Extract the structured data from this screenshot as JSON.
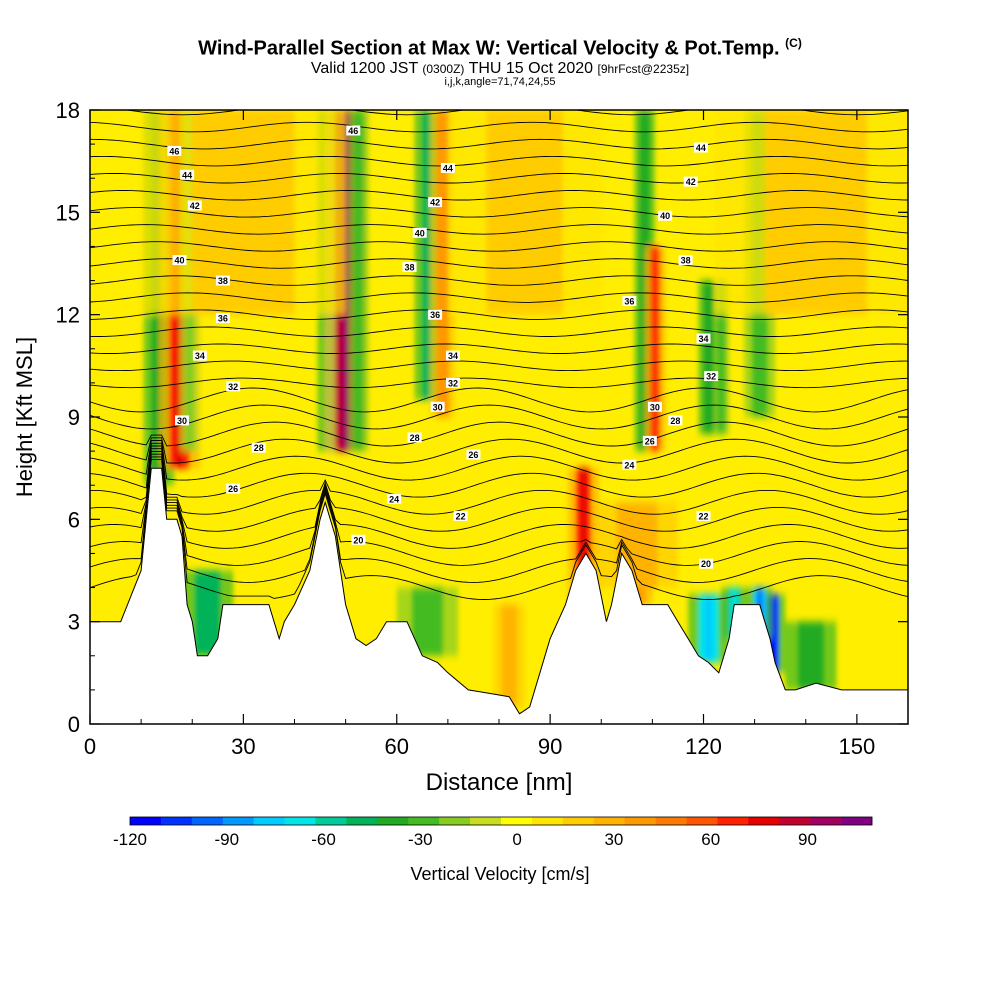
{
  "chart_data": {
    "type": "heatmap",
    "title": "Wind-Parallel Section at Max W: Vertical Velocity & Pot.Temp.",
    "title_mark": "(C)",
    "subtitle": {
      "valid": "Valid 1200 JST",
      "utc": "(0300Z)",
      "date": "THU 15 Oct 2020",
      "fcst": "[9hrFcst@2235z]"
    },
    "subtitle2": "i,j,k,angle=71,74,24,55",
    "xlabel": "Distance [nm]",
    "ylabel": "Height [Kft MSL]",
    "xlim": [
      0,
      160
    ],
    "ylim": [
      0,
      18
    ],
    "xticks": [
      "0",
      "30",
      "60",
      "90",
      "120",
      "150"
    ],
    "yticks": [
      "0",
      "3",
      "6",
      "9",
      "12",
      "15",
      "18"
    ],
    "colorbar": {
      "label": "Vertical Velocity [cm/s]",
      "min": -120,
      "max": 110,
      "ticks": [
        "-120",
        "-90",
        "-60",
        "-30",
        "0",
        "30",
        "60",
        "90"
      ],
      "colors": [
        "#0000ff",
        "#0033ff",
        "#0066ff",
        "#0099ff",
        "#00ccff",
        "#00e6e6",
        "#00cc99",
        "#00b359",
        "#22aa22",
        "#44bb22",
        "#88cc22",
        "#c8dd22",
        "#ffff00",
        "#ffe600",
        "#ffcc00",
        "#ffb300",
        "#ff9900",
        "#ff7a00",
        "#ff5500",
        "#ff2200",
        "#e60000",
        "#c00030",
        "#a00060",
        "#800080"
      ]
    },
    "terrain_height_kft": [
      [
        0,
        3.0
      ],
      [
        1,
        3.0
      ],
      [
        6,
        3.0
      ],
      [
        10,
        4.5
      ],
      [
        12,
        7.5
      ],
      [
        14,
        7.5
      ],
      [
        15,
        6.0
      ],
      [
        17,
        6.0
      ],
      [
        18,
        5.5
      ],
      [
        19,
        3.5
      ],
      [
        20,
        3.0
      ],
      [
        21,
        2.0
      ],
      [
        23,
        2.0
      ],
      [
        25,
        2.5
      ],
      [
        26,
        3.5
      ],
      [
        30,
        3.5
      ],
      [
        34,
        3.5
      ],
      [
        35,
        3.5
      ],
      [
        37,
        2.5
      ],
      [
        38,
        3.0
      ],
      [
        40,
        3.5
      ],
      [
        43,
        4.5
      ],
      [
        45,
        6.0
      ],
      [
        46,
        6.5
      ],
      [
        48,
        5.5
      ],
      [
        50,
        3.5
      ],
      [
        52,
        2.5
      ],
      [
        54,
        2.3
      ],
      [
        56,
        2.5
      ],
      [
        58,
        3.0
      ],
      [
        62,
        3.0
      ],
      [
        65,
        2.0
      ],
      [
        68,
        1.8
      ],
      [
        70,
        1.5
      ],
      [
        74,
        1.0
      ],
      [
        78,
        0.9
      ],
      [
        82,
        0.8
      ],
      [
        84,
        0.3
      ],
      [
        86,
        0.5
      ],
      [
        88,
        1.5
      ],
      [
        90,
        2.5
      ],
      [
        93,
        3.5
      ],
      [
        95,
        4.5
      ],
      [
        97,
        5.0
      ],
      [
        99,
        4.5
      ],
      [
        101,
        3.0
      ],
      [
        102,
        3.5
      ],
      [
        104,
        5.0
      ],
      [
        106,
        4.5
      ],
      [
        108,
        3.5
      ],
      [
        110,
        3.5
      ],
      [
        113,
        3.5
      ],
      [
        115,
        3.0
      ],
      [
        117,
        2.5
      ],
      [
        119,
        2.0
      ],
      [
        121,
        1.8
      ],
      [
        123,
        1.5
      ],
      [
        125,
        2.5
      ],
      [
        126,
        3.5
      ],
      [
        128,
        3.5
      ],
      [
        131,
        3.5
      ],
      [
        132,
        3.0
      ],
      [
        133,
        2.5
      ],
      [
        134,
        1.8
      ],
      [
        136,
        1.0
      ],
      [
        138,
        1.0
      ],
      [
        142,
        1.2
      ],
      [
        147,
        1.0
      ],
      [
        152,
        1.0
      ],
      [
        156,
        1.0
      ],
      [
        160,
        1.0
      ]
    ],
    "vertical_velocity_features": [
      {
        "x": 13.5,
        "width": 3,
        "bottom": 7,
        "top": 18,
        "w": -35
      },
      {
        "x": 17.5,
        "width": 4,
        "bottom": 7.5,
        "top": 18,
        "w": 70
      },
      {
        "x": 19.5,
        "width": 2,
        "bottom": 8,
        "top": 18,
        "w": -20
      },
      {
        "x": 47.5,
        "width": 3,
        "bottom": 8,
        "top": 18,
        "w": -65
      },
      {
        "x": 50,
        "width": 4,
        "bottom": 8,
        "top": 18,
        "w": 85
      },
      {
        "x": 52.5,
        "width": 2,
        "bottom": 8,
        "top": 18,
        "w": -25
      },
      {
        "x": 66.5,
        "width": 3,
        "bottom": 9.5,
        "top": 18,
        "w": -45
      },
      {
        "x": 69,
        "width": 2.5,
        "bottom": 9,
        "top": 18,
        "w": 35
      },
      {
        "x": 96.5,
        "width": 3,
        "bottom": 3,
        "top": 7.5,
        "w": 65
      },
      {
        "x": 107,
        "width": 3,
        "bottom": 3.5,
        "top": 6.5,
        "w": 40
      },
      {
        "x": 108.5,
        "width": 2,
        "bottom": 8,
        "top": 18,
        "w": -40
      },
      {
        "x": 110.5,
        "width": 2,
        "bottom": 8,
        "top": 14,
        "w": 60
      },
      {
        "x": 121,
        "width": 2,
        "bottom": 8.5,
        "top": 13,
        "w": -35
      },
      {
        "x": 123.5,
        "width": 1.5,
        "bottom": 8.5,
        "top": 13,
        "w": -30
      },
      {
        "x": 131,
        "width": 3,
        "bottom": 9,
        "top": 18,
        "w": -25
      },
      {
        "x": 23,
        "width": 5,
        "bottom": 2,
        "top": 4.5,
        "w": -45
      },
      {
        "x": 66,
        "width": 6,
        "bottom": 2,
        "top": 4,
        "w": -25
      },
      {
        "x": 82,
        "width": 3,
        "bottom": 0.5,
        "top": 3.5,
        "w": 30
      },
      {
        "x": 121,
        "width": 4,
        "bottom": 1.8,
        "top": 3.8,
        "w": -70
      },
      {
        "x": 126,
        "width": 2.5,
        "bottom": 2.5,
        "top": 4,
        "w": -55
      },
      {
        "x": 133.5,
        "width": 2.5,
        "bottom": 1.5,
        "top": 3.8,
        "w": -110
      },
      {
        "x": 131,
        "width": 2.5,
        "bottom": 2.5,
        "top": 4,
        "w": -80
      },
      {
        "x": 141,
        "width": 5,
        "bottom": 1.0,
        "top": 3,
        "w": -40
      },
      {
        "x": 30,
        "width": 20,
        "bottom": 12,
        "top": 18,
        "w": 18
      },
      {
        "x": 85,
        "width": 15,
        "bottom": 12,
        "top": 18,
        "w": 20
      },
      {
        "x": 142,
        "width": 20,
        "bottom": 12,
        "top": 18,
        "w": 15
      },
      {
        "x": 107,
        "width": 8,
        "bottom": 4,
        "top": 6.5,
        "w": 25
      }
    ],
    "theta_contour_labels": [
      {
        "text": "46",
        "x": 16.5,
        "y": 16.8
      },
      {
        "text": "44",
        "x": 19,
        "y": 16.1
      },
      {
        "text": "42",
        "x": 20.5,
        "y": 15.2
      },
      {
        "text": "40",
        "x": 17.5,
        "y": 13.6
      },
      {
        "text": "38",
        "x": 26,
        "y": 13.0
      },
      {
        "text": "36",
        "x": 26,
        "y": 11.9
      },
      {
        "text": "34",
        "x": 21.5,
        "y": 10.8
      },
      {
        "text": "32",
        "x": 28,
        "y": 9.9
      },
      {
        "text": "30",
        "x": 18,
        "y": 8.9
      },
      {
        "text": "28",
        "x": 33,
        "y": 8.1
      },
      {
        "text": "26",
        "x": 28,
        "y": 6.9
      },
      {
        "text": "46",
        "x": 51.5,
        "y": 17.4
      },
      {
        "text": "44",
        "x": 70,
        "y": 16.3
      },
      {
        "text": "42",
        "x": 67.5,
        "y": 15.3
      },
      {
        "text": "40",
        "x": 64.5,
        "y": 14.4
      },
      {
        "text": "38",
        "x": 62.5,
        "y": 13.4
      },
      {
        "text": "36",
        "x": 67.5,
        "y": 12.0
      },
      {
        "text": "34",
        "x": 71,
        "y": 10.8
      },
      {
        "text": "32",
        "x": 71,
        "y": 10.0
      },
      {
        "text": "30",
        "x": 68,
        "y": 9.3
      },
      {
        "text": "28",
        "x": 63.5,
        "y": 8.4
      },
      {
        "text": "26",
        "x": 75,
        "y": 7.9
      },
      {
        "text": "24",
        "x": 59.5,
        "y": 6.6
      },
      {
        "text": "22",
        "x": 72.5,
        "y": 6.1
      },
      {
        "text": "20",
        "x": 52.5,
        "y": 5.4
      },
      {
        "text": "44",
        "x": 119.5,
        "y": 16.9
      },
      {
        "text": "42",
        "x": 117.5,
        "y": 15.9
      },
      {
        "text": "40",
        "x": 112.5,
        "y": 14.9
      },
      {
        "text": "38",
        "x": 116.5,
        "y": 13.6
      },
      {
        "text": "36",
        "x": 105.5,
        "y": 12.4
      },
      {
        "text": "34",
        "x": 120,
        "y": 11.3
      },
      {
        "text": "32",
        "x": 121.5,
        "y": 10.2
      },
      {
        "text": "30",
        "x": 110.5,
        "y": 9.3
      },
      {
        "text": "28",
        "x": 114.5,
        "y": 8.9
      },
      {
        "text": "26",
        "x": 109.5,
        "y": 8.3
      },
      {
        "text": "24",
        "x": 105.5,
        "y": 7.6
      },
      {
        "text": "22",
        "x": 120,
        "y": 6.1
      },
      {
        "text": "20",
        "x": 120.5,
        "y": 4.7
      }
    ],
    "grid": false
  }
}
